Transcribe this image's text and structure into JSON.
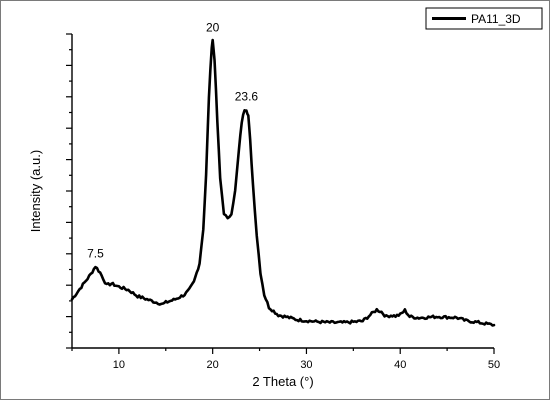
{
  "chart_data": {
    "type": "line",
    "title": "",
    "xlabel": "2 Theta (°)",
    "ylabel": "Intensity (a.u.)",
    "xlim": [
      5,
      50
    ],
    "ylim": [
      0,
      100
    ],
    "x_ticks": [
      10,
      20,
      30,
      40,
      50
    ],
    "grid": false,
    "legend": {
      "placement": "top-right",
      "entries": [
        "PA11_3D"
      ]
    },
    "series_color": "#000000",
    "series": [
      {
        "name": "PA11_3D",
        "x": [
          5,
          6,
          7,
          7.5,
          8,
          8.7,
          9.2,
          10,
          11,
          12,
          13,
          14,
          14.7,
          15,
          16,
          17,
          17.5,
          18,
          18.6,
          19,
          19.3,
          19.6,
          19.9,
          20,
          20.2,
          20.5,
          20.8,
          21.2,
          21.6,
          22,
          22.4,
          22.8,
          23.1,
          23.4,
          23.6,
          23.8,
          24,
          24.3,
          24.7,
          25.1,
          25.5,
          26,
          27,
          28,
          29,
          30,
          31,
          32,
          33,
          34,
          35,
          36,
          36.8,
          37.5,
          38,
          38.5,
          39,
          39.5,
          40,
          40.5,
          41,
          42,
          43,
          44,
          45,
          46,
          47,
          48,
          49,
          50
        ],
        "y": [
          15.5,
          19.5,
          23.5,
          26,
          24,
          20,
          20.5,
          19.5,
          18.5,
          16.5,
          15.5,
          14.5,
          14,
          14.5,
          15.5,
          17,
          18.5,
          21,
          27,
          38,
          55,
          80,
          96,
          98,
          92,
          72,
          54,
          43,
          41,
          43,
          50,
          63,
          72,
          76,
          76,
          74,
          66,
          52,
          36,
          24,
          17,
          13,
          10.5,
          9.8,
          9,
          8.7,
          8.4,
          8.2,
          8.1,
          8.1,
          8.3,
          8.6,
          10.5,
          12.2,
          11.5,
          10,
          10.4,
          10.2,
          10.6,
          12,
          10,
          9.6,
          9.8,
          10,
          9.8,
          9.7,
          8.7,
          8.3,
          7.8,
          7.3
        ]
      }
    ],
    "annotations": [
      {
        "text": "7.5",
        "x": 7.5,
        "y": 26
      },
      {
        "text": "20",
        "x": 20,
        "y": 98
      },
      {
        "text": "23.6",
        "x": 23.6,
        "y": 76
      }
    ]
  }
}
